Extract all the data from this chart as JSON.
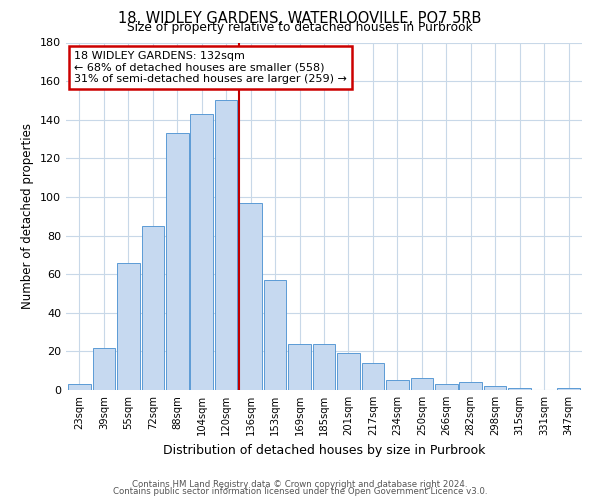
{
  "title": "18, WIDLEY GARDENS, WATERLOOVILLE, PO7 5RB",
  "subtitle": "Size of property relative to detached houses in Purbrook",
  "xlabel": "Distribution of detached houses by size in Purbrook",
  "ylabel": "Number of detached properties",
  "bar_labels": [
    "23sqm",
    "39sqm",
    "55sqm",
    "72sqm",
    "88sqm",
    "104sqm",
    "120sqm",
    "136sqm",
    "153sqm",
    "169sqm",
    "185sqm",
    "201sqm",
    "217sqm",
    "234sqm",
    "250sqm",
    "266sqm",
    "282sqm",
    "298sqm",
    "315sqm",
    "331sqm",
    "347sqm"
  ],
  "bar_values": [
    3,
    22,
    66,
    85,
    133,
    143,
    150,
    97,
    57,
    24,
    24,
    19,
    14,
    5,
    6,
    3,
    4,
    2,
    1,
    0,
    1
  ],
  "vline_index": 7,
  "bar_color": "#c6d9f0",
  "bar_edge_color": "#5b9bd5",
  "vline_color": "#c00000",
  "annotation_line1": "18 WIDLEY GARDENS: 132sqm",
  "annotation_line2": "← 68% of detached houses are smaller (558)",
  "annotation_line3": "31% of semi-detached houses are larger (259) →",
  "annotation_box_edge": "#cc0000",
  "ylim": [
    0,
    180
  ],
  "yticks": [
    0,
    20,
    40,
    60,
    80,
    100,
    120,
    140,
    160,
    180
  ],
  "footer_line1": "Contains HM Land Registry data © Crown copyright and database right 2024.",
  "footer_line2": "Contains public sector information licensed under the Open Government Licence v3.0.",
  "background_color": "#ffffff",
  "grid_color": "#c8d8e8"
}
